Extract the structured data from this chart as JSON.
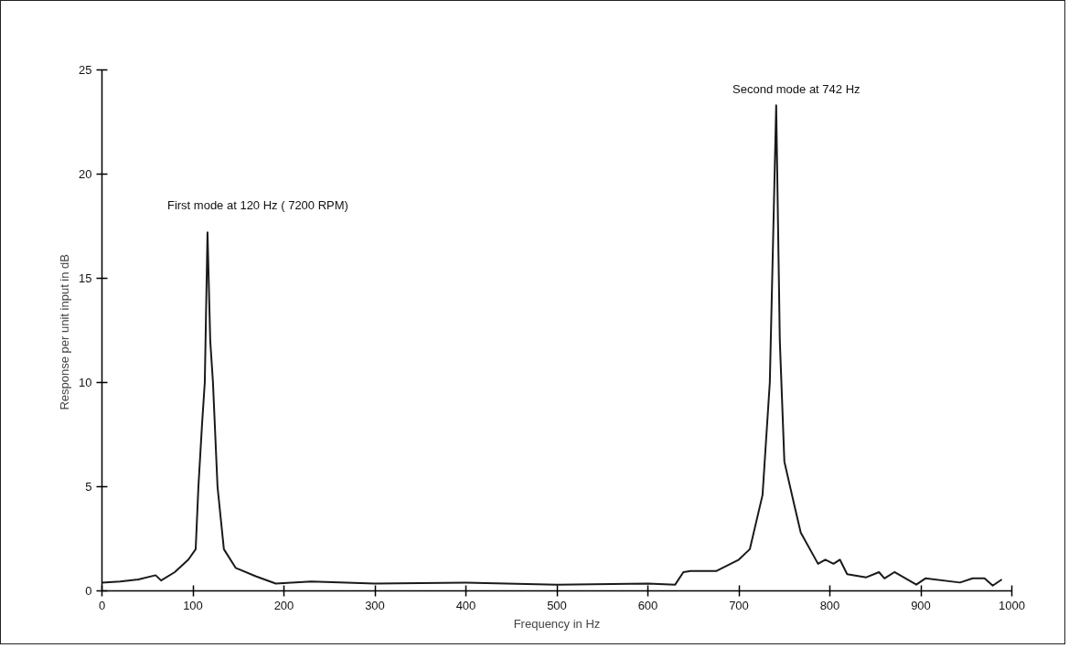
{
  "chart_data": {
    "type": "line",
    "xlabel": "Frequency in Hz",
    "ylabel": "Response  per unit input in dB",
    "x": [
      0,
      20,
      40,
      59,
      65,
      80,
      95,
      103,
      106,
      110,
      113,
      116,
      119,
      122,
      127,
      134,
      147,
      169,
      191,
      230,
      300,
      400,
      500,
      600,
      630,
      639,
      647,
      675,
      700,
      712,
      726,
      734,
      741,
      745,
      750,
      761,
      768,
      787,
      795,
      804,
      811,
      819,
      840,
      854,
      860,
      871,
      895,
      905,
      943,
      957,
      970,
      979,
      989
    ],
    "values": [
      0.4,
      0.45,
      0.55,
      0.75,
      0.5,
      0.9,
      1.5,
      2.0,
      5.0,
      8.0,
      10.0,
      17.2,
      12.0,
      10.0,
      5.0,
      2.0,
      1.1,
      0.7,
      0.35,
      0.45,
      0.35,
      0.4,
      0.3,
      0.35,
      0.3,
      0.9,
      0.95,
      0.95,
      1.5,
      2.0,
      4.6,
      10.0,
      23.3,
      12.0,
      6.2,
      4.1,
      2.8,
      1.3,
      1.5,
      1.3,
      1.5,
      0.8,
      0.65,
      0.9,
      0.6,
      0.9,
      0.3,
      0.6,
      0.4,
      0.6,
      0.6,
      0.25,
      0.55
    ],
    "color": "#1a1a1a",
    "xlim": [
      0,
      1000
    ],
    "ylim": [
      0,
      25
    ],
    "xticks": [
      0,
      100,
      200,
      300,
      400,
      500,
      600,
      700,
      800,
      900,
      1000
    ],
    "yticks": [
      0,
      5,
      10,
      15,
      20,
      25
    ],
    "grid": false,
    "marker": "none",
    "line_style": "solid",
    "annotations": [
      {
        "text": "First mode at 120 Hz ( 7200 RPM)",
        "x": 116,
        "y": 17.2
      },
      {
        "text": "Second mode at 742 Hz",
        "x": 741,
        "y": 23.3
      }
    ]
  }
}
